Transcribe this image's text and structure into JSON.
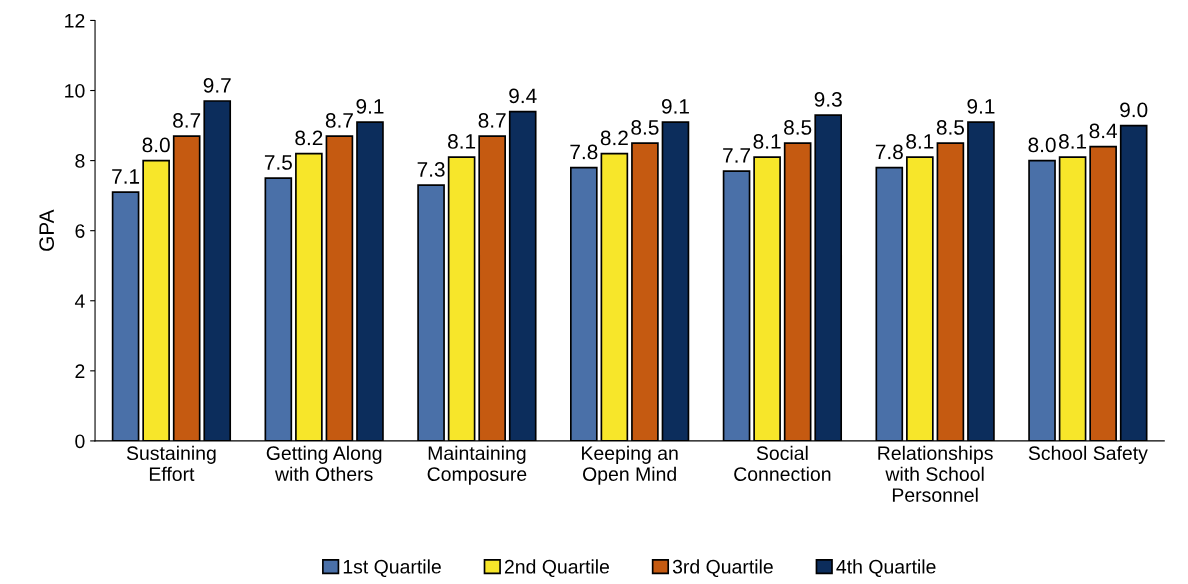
{
  "chart_data": {
    "type": "bar",
    "ylabel": "GPA",
    "categories": [
      "Sustaining\nEffort",
      "Getting Along\nwith Others",
      "Maintaining\nComposure",
      "Keeping an\nOpen Mind",
      "Social\nConnection",
      "Relationships\nwith School\nPersonnel",
      "School Safety"
    ],
    "series": [
      {
        "name": "1st Quartile",
        "color": "#4a70a8",
        "values": [
          7.1,
          7.5,
          7.3,
          7.8,
          7.7,
          7.8,
          8.0
        ],
        "value_labels": [
          "7.1",
          "7.5",
          "7.3",
          "7.8",
          "7.7",
          "7.8",
          "8.0"
        ]
      },
      {
        "name": "2nd Quartile",
        "color": "#f7e62a",
        "values": [
          8.0,
          8.2,
          8.1,
          8.2,
          8.1,
          8.1,
          8.1
        ],
        "value_labels": [
          "8.0",
          "8.2",
          "8.1",
          "8.2",
          "8.1",
          "8.1",
          "8.1"
        ]
      },
      {
        "name": "3rd Quartile",
        "color": "#c55a11",
        "values": [
          8.7,
          8.7,
          8.7,
          8.5,
          8.5,
          8.5,
          8.4
        ],
        "value_labels": [
          "8.7",
          "8.7",
          "8.7",
          "8.5",
          "8.5",
          "8.5",
          "8.4"
        ]
      },
      {
        "name": "4th Quartile",
        "color": "#0c2d5c",
        "values": [
          9.7,
          9.1,
          9.4,
          9.1,
          9.3,
          9.1,
          9.0
        ],
        "value_labels": [
          "9.7",
          "9.1",
          "9.4",
          "9.1",
          "9.3",
          "9.1",
          "9.0"
        ]
      }
    ],
    "ylim": [
      0,
      12
    ],
    "yticks": [
      0,
      2,
      4,
      6,
      8,
      10,
      12
    ],
    "grid": false,
    "legend": "bottom"
  }
}
